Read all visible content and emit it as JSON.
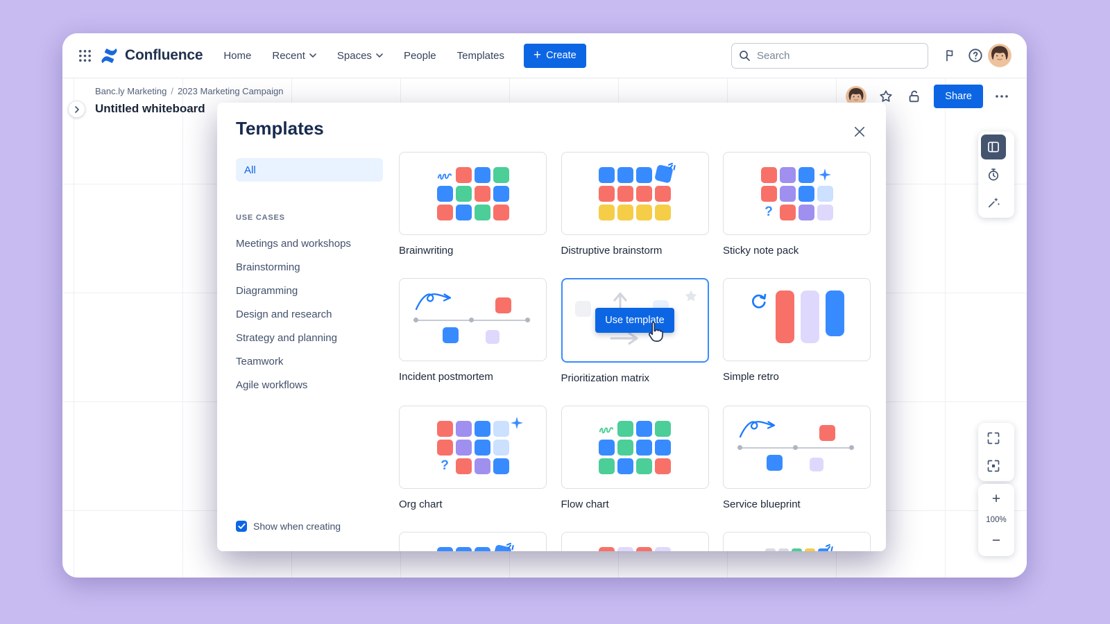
{
  "palette": {
    "orange": "#F87168",
    "blue": "#388BFF",
    "darkblue": "#1D7AFC",
    "green": "#4BCE97",
    "yellow": "#F5CD47",
    "purple": "#9F8FEF",
    "lightpurple": "#DFD8FD",
    "lightblue": "#CCE0FF",
    "gray": "#D7DBE1"
  },
  "icons": {
    "app-switcher": "grid-dots",
    "search": "magnifier",
    "notifications": "flag",
    "help": "question-circle",
    "favorite": "star-outline",
    "access": "unlock",
    "more": "ellipsis",
    "close": "x",
    "templates-tool": "board-panel",
    "timer-tool": "stopwatch",
    "laser-tool": "wand-sparkles",
    "zoom-fit": "corners-expand",
    "focus": "corners-frame",
    "cursor": "hand-pointer"
  },
  "navbar": {
    "product": "Confluence",
    "items": [
      {
        "label": "Home",
        "chevron": false
      },
      {
        "label": "Recent",
        "chevron": true
      },
      {
        "label": "Spaces",
        "chevron": true
      },
      {
        "label": "People",
        "chevron": false
      },
      {
        "label": "Templates",
        "chevron": false
      }
    ],
    "create_label": "Create",
    "create_plus": "+",
    "search_placeholder": "Search"
  },
  "board": {
    "breadcrumb": {
      "space": "Banc.ly Marketing",
      "separator": "/",
      "page": "2023 Marketing Campaign"
    },
    "title": "Untitled whiteboard",
    "share_label": "Share",
    "zoom_level": "100%",
    "zoom_in_glyph": "+",
    "zoom_out_glyph": "−"
  },
  "modal": {
    "title": "Templates",
    "filter_all": "All",
    "section_title": "USE CASES",
    "use_cases": [
      "Meetings and workshops",
      "Brainstorming",
      "Diagramming",
      "Design and research",
      "Strategy and planning",
      "Teamwork",
      "Agile workflows"
    ],
    "show_when_creating": "Show when creating",
    "use_template_label": "Use template",
    "templates": [
      {
        "name": "Brainwriting",
        "thumb": {
          "kind": "grid",
          "rows": [
            [
              "scribble",
              "orange",
              "blue",
              "green"
            ],
            [
              "blue",
              "green",
              "orange",
              "blue"
            ],
            [
              "orange",
              "blue",
              "green",
              "orange"
            ]
          ]
        }
      },
      {
        "name": "Distruptive brainstorm",
        "thumb": {
          "kind": "grid",
          "rows": [
            [
              "blue",
              "blue",
              "blue",
              "tilt"
            ],
            [
              "orange",
              "orange",
              "orange",
              "orange"
            ],
            [
              "yellow",
              "yellow",
              "yellow",
              "yellow"
            ]
          ]
        }
      },
      {
        "name": "Sticky note pack",
        "thumb": {
          "kind": "grid",
          "rows": [
            [
              "orange",
              "purple",
              "blue",
              "sparkle"
            ],
            [
              "orange",
              "purple",
              "blue",
              "lightblue"
            ],
            [
              "q",
              "orange",
              "purple",
              "lightpurple"
            ]
          ]
        }
      },
      {
        "name": "Incident postmortem",
        "thumb": {
          "kind": "timeline"
        }
      },
      {
        "name": "Prioritization matrix",
        "selected": true,
        "thumb": {
          "kind": "matrix"
        }
      },
      {
        "name": "Simple retro",
        "thumb": {
          "kind": "retro",
          "bars": [
            "orange",
            "lightpurple",
            "blue"
          ]
        }
      },
      {
        "name": "Org chart",
        "thumb": {
          "kind": "grid",
          "sparkleTR": true,
          "rows": [
            [
              "orange",
              "purple",
              "blue",
              "lightblue"
            ],
            [
              "orange",
              "purple",
              "blue",
              "lightblue"
            ],
            [
              "q",
              "orange",
              "purple",
              "blue"
            ]
          ]
        }
      },
      {
        "name": "Flow chart",
        "thumb": {
          "kind": "grid",
          "rows": [
            [
              "scribbleGreen",
              "green",
              "blue",
              "green"
            ],
            [
              "blue",
              "green",
              "blue",
              "blue"
            ],
            [
              "green",
              "blue",
              "green",
              "orange"
            ]
          ]
        }
      },
      {
        "name": "Service blueprint",
        "thumb": {
          "kind": "timeline"
        }
      },
      {
        "name": "",
        "partial": true,
        "thumb": {
          "kind": "grid",
          "rows": [
            [
              "blue",
              "blue",
              "blue",
              "tilt"
            ],
            [
              "orange",
              "orange",
              "orange",
              "orange"
            ],
            [
              "yellow",
              "yellow",
              "yellow",
              "yellow"
            ]
          ]
        }
      },
      {
        "name": "",
        "partial": true,
        "thumb": {
          "kind": "grid",
          "rows": [
            [
              "orange",
              "lightpurple",
              "orange",
              "lightpurple"
            ],
            [
              "orange",
              "lightpurple",
              "orange",
              "orange"
            ],
            [
              "orange",
              "orange",
              "lightpurple",
              "orange"
            ]
          ]
        }
      },
      {
        "name": "",
        "partial": true,
        "thumb": {
          "kind": "grid",
          "small": true,
          "burstTR": true,
          "rows": [
            [
              "gray",
              "gray",
              "green",
              "yellow",
              "blue"
            ],
            [
              "gray",
              "green",
              "yellow",
              "blue",
              "gray"
            ],
            [
              "green",
              "yellow",
              "blue",
              "gray",
              "gray"
            ],
            [
              "yellow",
              "blue",
              "gray",
              "gray",
              "green"
            ]
          ]
        }
      }
    ]
  }
}
